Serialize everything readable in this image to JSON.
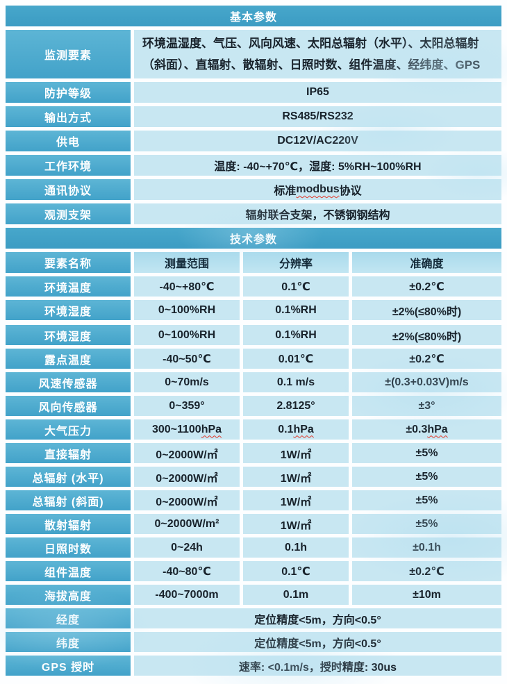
{
  "colors": {
    "section_header_blue": "#3f9fc6",
    "label_cell_blue": "#4aa9cd",
    "value_cell_light_blue": "#c8e7f2",
    "column_header_blue": "#b3ddee",
    "text_dark": "#18222b",
    "text_white": "#ffffff",
    "spellcheck_red": "#e2392b"
  },
  "basic": {
    "title": "基本参数",
    "rows": [
      {
        "label": "监测要素",
        "value": "环境温湿度、气压、风向风速、太阳总辐射（水平）、太阳总辐射（斜面）、直辐射、散辐射、日照时数、组件温度、经纬度、GPS"
      },
      {
        "label": "防护等级",
        "value": "IP65"
      },
      {
        "label": "输出方式",
        "value": "RS485/RS232"
      },
      {
        "label": "供电",
        "value": "DC12V/AC220V"
      },
      {
        "label": "工作环境",
        "value": "温度: -40~+70℃，湿度: 5%RH~100%RH"
      },
      {
        "label": "通讯协议",
        "value_prefix": "标准 ",
        "value_mark": "modbus",
        "value_suffix": " 协议"
      },
      {
        "label": "观测支架",
        "value": "辐射联合支架，不锈钢钢结构"
      }
    ]
  },
  "tech": {
    "title": "技术参数",
    "headers": {
      "name": "要素名称",
      "range": "测量范围",
      "resolution": "分辨率",
      "accuracy": "准确度"
    },
    "rows": [
      {
        "name": "环境温度",
        "range": "-40~+80℃",
        "resolution": "0.1℃",
        "accuracy": "±0.2℃"
      },
      {
        "name": "环境湿度",
        "range": "0~100%RH",
        "resolution": "0.1%RH",
        "accuracy": "±2%(≤80%时)"
      },
      {
        "name": "环境湿度",
        "range": "0~100%RH",
        "resolution": "0.1%RH",
        "accuracy": "±2%(≤80%时)"
      },
      {
        "name": "露点温度",
        "range": "-40~50℃",
        "resolution": "0.01℃",
        "accuracy": "±0.2℃"
      },
      {
        "name": "风速传感器",
        "range": "0~70m/s",
        "resolution": "0.1 m/s",
        "accuracy": "±(0.3+0.03V)m/s"
      },
      {
        "name": "风向传感器",
        "range": "0~359°",
        "resolution": "2.8125°",
        "accuracy": "±3°"
      },
      {
        "name": "大气压力",
        "range_pre": "300~1100 ",
        "range_mark": "hPa",
        "res_pre": "0.1 ",
        "res_mark": "hPa",
        "acc_pre": "±0.3 ",
        "acc_mark": "hPa"
      },
      {
        "name": "直接辐射",
        "range": "0~2000W/㎡",
        "resolution": "1W/㎡",
        "accuracy": "±5%"
      },
      {
        "name": "总辐射 (水平)",
        "range": "0~2000W/㎡",
        "resolution": "1W/㎡",
        "accuracy": "±5%"
      },
      {
        "name": "总辐射 (斜面)",
        "range": "0~2000W/㎡",
        "resolution": "1W/㎡",
        "accuracy": "±5%"
      },
      {
        "name": "散射辐射",
        "range": "0~2000W/m²",
        "resolution": "1W/㎡",
        "accuracy": "±5%"
      },
      {
        "name": "日照时数",
        "range": "0~24h",
        "resolution": "0.1h",
        "accuracy": "±0.1h"
      },
      {
        "name": "组件温度",
        "range": "-40~80℃",
        "resolution": "0.1℃",
        "accuracy": "±0.2℃"
      },
      {
        "name": "海拔高度",
        "range": "-400~7000m",
        "resolution": "0.1m",
        "accuracy": "±10m"
      }
    ],
    "span_rows": [
      {
        "name": "经度",
        "value": "定位精度<5m，方向<0.5°"
      },
      {
        "name": "纬度",
        "value": "定位精度<5m，方向<0.5°"
      },
      {
        "name": "GPS 授时",
        "value": "速率: <0.1m/s，授时精度: 30us"
      }
    ]
  }
}
